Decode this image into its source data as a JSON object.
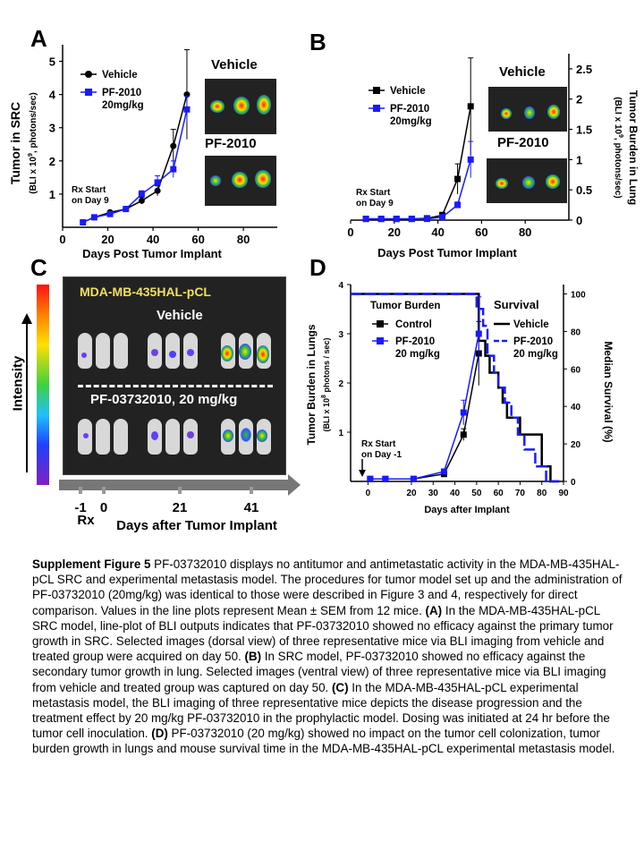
{
  "panels": {
    "A": {
      "letter": "A",
      "ylabel_main": "Tumor in SRC",
      "ylabel_sub": "(BLI x 10",
      "ylabel_sup": "9",
      "ylabel_tail": ", photons/sec)",
      "xlabel": "Days Post Tumor Implant",
      "legend": [
        "Vehicle",
        "PF-2010",
        "20mg/kg"
      ],
      "annotation": [
        "Rx Start",
        "on Day 9"
      ],
      "image_labels": [
        "Vehicle",
        "PF-2010"
      ]
    },
    "B": {
      "letter": "B",
      "ylabel_main": "Tumor Burden in Lung",
      "ylabel_sub": "(BLI x 10",
      "ylabel_sup": "9",
      "ylabel_tail": ", photons/sec)",
      "xlabel": "Days Post Tumor Implant",
      "legend": [
        "Vehicle",
        "PF-2010",
        "20mg/kg"
      ],
      "annotation": [
        "Rx Start",
        "on Day 9"
      ],
      "image_labels": [
        "Vehicle",
        "PF-2010"
      ]
    },
    "C": {
      "letter": "C",
      "title": "MDA-MB-435HAL-pCL",
      "group1": "Vehicle",
      "group2": "PF-03732010, 20 mg/kg",
      "intensity": "Intensity",
      "timeline_ticks": [
        "-1",
        "0",
        "21",
        "41"
      ],
      "rx": "Rx",
      "xlabel": "Days after Tumor Implant"
    },
    "D": {
      "letter": "D",
      "ylabel_main": "Tumor Burden in Lungs",
      "ylabel_sub": "(BLI x 10",
      "ylabel_sup": "8",
      "ylabel_tail": " photons / sec)",
      "y2label": "Median Survival (%)",
      "xlabel": "Days after Implant",
      "legend_tb_title": "Tumor Burden",
      "legend_tb": [
        "Control",
        "PF-2010",
        "20 mg/kg"
      ],
      "legend_sv_title": "Survival",
      "legend_sv": [
        "Vehicle",
        "PF-2010",
        "20 mg/kg"
      ],
      "annotation": [
        "Rx Start",
        "on Day -1"
      ]
    }
  },
  "colors": {
    "vehicle": "#000000",
    "treated": "#1a1aff",
    "panel_c_bg": "#222222",
    "panel_c_title": "#f0e060"
  },
  "chart_data": [
    {
      "panel": "A",
      "type": "line",
      "xlabel": "Days Post Tumor Implant",
      "ylabel": "Tumor in SRC (BLI x 10^9, photons/sec)",
      "xlim": [
        0,
        95
      ],
      "ylim": [
        0,
        5.5
      ],
      "xticks": [
        0,
        20,
        40,
        60,
        80
      ],
      "yticks": [
        1,
        2,
        3,
        4,
        5
      ],
      "series": [
        {
          "name": "Vehicle",
          "x": [
            9,
            14,
            21,
            28,
            35,
            42,
            49,
            55
          ],
          "y": [
            0.15,
            0.3,
            0.45,
            0.55,
            0.8,
            1.1,
            2.45,
            4.0
          ],
          "err": [
            0.05,
            0.05,
            0.05,
            0.05,
            0.1,
            0.15,
            0.5,
            1.35
          ]
        },
        {
          "name": "PF-2010 20mg/kg",
          "x": [
            9,
            14,
            21,
            28,
            35,
            42,
            49,
            55
          ],
          "y": [
            0.15,
            0.3,
            0.4,
            0.55,
            1.0,
            1.35,
            1.75,
            3.55
          ],
          "err": [
            0.05,
            0.05,
            0.05,
            0.05,
            0.1,
            0.2,
            0.25,
            0.4
          ]
        }
      ]
    },
    {
      "panel": "B",
      "type": "line",
      "xlabel": "Days Post Tumor Implant",
      "ylabel": "Tumor Burden in Lung (BLI x 10^9, photons/sec)",
      "xlim": [
        0,
        100
      ],
      "ylim": [
        0,
        2.75
      ],
      "xticks": [
        0,
        20,
        40,
        60,
        80
      ],
      "yticks": [
        0,
        0.5,
        1,
        1.5,
        2,
        2.5
      ],
      "series": [
        {
          "name": "Vehicle",
          "x": [
            7,
            14,
            21,
            28,
            35,
            42,
            49,
            55
          ],
          "y": [
            0.02,
            0.02,
            0.02,
            0.02,
            0.03,
            0.08,
            0.68,
            1.88
          ],
          "err": [
            0.01,
            0.01,
            0.01,
            0.01,
            0.02,
            0.05,
            0.25,
            0.8
          ]
        },
        {
          "name": "PF-2010 20mg/kg",
          "x": [
            7,
            14,
            21,
            28,
            35,
            42,
            49,
            55
          ],
          "y": [
            0.02,
            0.02,
            0.02,
            0.02,
            0.02,
            0.05,
            0.25,
            1.0
          ],
          "err": [
            0.01,
            0.01,
            0.01,
            0.01,
            0.01,
            0.02,
            0.05,
            0.3
          ]
        }
      ]
    },
    {
      "panel": "D",
      "type": "line",
      "xlabel": "Days after Implant",
      "ylabel": "Tumor Burden in Lungs (BLI x 10^8 photons / sec)",
      "y2label": "Median Survival (%)",
      "xlim": [
        -8,
        90
      ],
      "ylim": [
        0,
        4
      ],
      "y2lim": [
        0,
        105
      ],
      "xticks": [
        0,
        20,
        30,
        40,
        50,
        60,
        70,
        80,
        90
      ],
      "yticks": [
        1,
        2,
        3,
        4
      ],
      "y2ticks": [
        0,
        20,
        40,
        60,
        80,
        100
      ],
      "series": [
        {
          "name": "Control",
          "x": [
            1,
            8,
            21,
            35,
            44,
            51
          ],
          "y": [
            0.05,
            0.05,
            0.05,
            0.15,
            0.95,
            2.6
          ],
          "err": [
            0.02,
            0.02,
            0.02,
            0.05,
            0.12,
            0.65
          ]
        },
        {
          "name": "PF-2010 20 mg/kg",
          "x": [
            1,
            8,
            21,
            35,
            44,
            51
          ],
          "y": [
            0.05,
            0.05,
            0.05,
            0.2,
            1.4,
            3.0
          ],
          "err": [
            0.02,
            0.02,
            0.02,
            0.05,
            0.25,
            0.75
          ]
        }
      ],
      "survival": [
        {
          "name": "Vehicle",
          "x": [
            -8,
            51,
            51,
            54,
            54,
            56,
            56,
            60,
            60,
            62,
            62,
            64,
            64,
            67,
            67,
            70,
            70,
            74,
            74,
            80,
            80,
            84,
            84,
            88
          ],
          "y": [
            100,
            100,
            75,
            75,
            67,
            67,
            58,
            58,
            50,
            50,
            42,
            42,
            34,
            34,
            34,
            34,
            25,
            25,
            25,
            25,
            8,
            8,
            0,
            0
          ]
        },
        {
          "name": "PF-2010 20 mg/kg",
          "x": [
            -8,
            50,
            50,
            53,
            53,
            55,
            55,
            58,
            58,
            60,
            60,
            63,
            63,
            66,
            66,
            69,
            69,
            72,
            72,
            77,
            77,
            82,
            82,
            88
          ],
          "y": [
            100,
            100,
            92,
            92,
            83,
            83,
            67,
            67,
            58,
            58,
            50,
            50,
            42,
            42,
            34,
            34,
            25,
            25,
            17,
            17,
            8,
            8,
            0,
            0
          ]
        }
      ]
    }
  ],
  "caption": {
    "lead": "Supplement Figure 5",
    "text1": " PF-03732010 displays no antitumor and antimetastatic activity in the MDA-MB-435HAL-pCL SRC and experimental metastasis model.  The procedures for tumor model set up and the administration of PF-03732010 (20mg/kg) was identical to those were described in Figure 3 and 4, respectively for direct comparison.   Values in the line plots represent Mean ± SEM from 12 mice.   ",
    "a": "(A)",
    "text2": " In the MDA-MB-435HAL-pCL SRC model, line-plot of BLI outputs indicates that PF-03732010 showed no efficacy against the primary tumor growth in SRC.  Selected images (dorsal view) of three representative mice via BLI imaging from vehicle and treated group were acquired on day 50.  ",
    "b": "(B)",
    "text3": " In SRC model, PF-03732010 showed no efficacy against the secondary tumor growth in lung.  Selected images (ventral view) of three representative mice via BLI imaging from vehicle and treated group was captured on day 50.   ",
    "c": "(C)",
    "text4": " In the MDA-MB-435HAL-pCL experimental metastasis model, the BLI imaging of three representative mice depicts the disease progression and the treatment effect by 20 mg/kg PF-03732010 in the prophylactic model.  Dosing was initiated at 24 hr before the tumor cell inoculation.  ",
    "d": "(D)",
    "text5": " PF-03732010 (20 mg/kg) showed no impact on the tumor cell colonization, tumor burden growth in lungs and mouse survival time in the MDA-MB-435HAL-pCL experimental metastasis model."
  }
}
